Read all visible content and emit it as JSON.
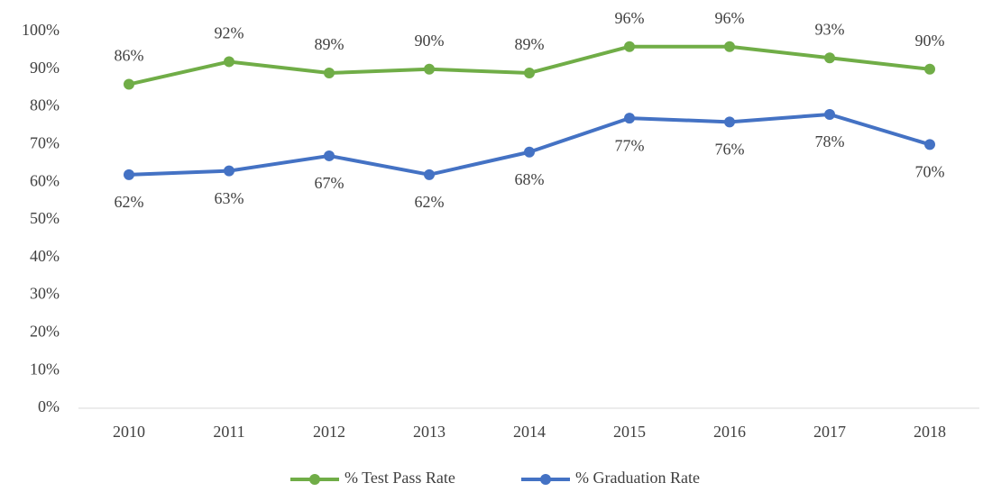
{
  "chart_data": {
    "type": "line",
    "categories": [
      "2010",
      "2011",
      "2012",
      "2013",
      "2014",
      "2015",
      "2016",
      "2017",
      "2018"
    ],
    "series": [
      {
        "name": "% Test Pass Rate",
        "color": "#70ad47",
        "values": [
          86,
          92,
          89,
          90,
          89,
          96,
          96,
          93,
          90
        ],
        "value_labels": [
          "86%",
          "92%",
          "89%",
          "90%",
          "89%",
          "96%",
          "96%",
          "93%",
          "90%"
        ]
      },
      {
        "name": "% Graduation Rate",
        "color": "#4472c4",
        "values": [
          62,
          63,
          67,
          62,
          68,
          77,
          76,
          78,
          70
        ],
        "value_labels": [
          "62%",
          "63%",
          "67%",
          "62%",
          "68%",
          "77%",
          "76%",
          "78%",
          "70%"
        ]
      }
    ],
    "ylim": [
      0,
      100
    ],
    "yticks": [
      {
        "value": 0,
        "label": "0%"
      },
      {
        "value": 10,
        "label": "10%"
      },
      {
        "value": 20,
        "label": "20%"
      },
      {
        "value": 30,
        "label": "30%"
      },
      {
        "value": 40,
        "label": "40%"
      },
      {
        "value": 50,
        "label": "50%"
      },
      {
        "value": 60,
        "label": "60%"
      },
      {
        "value": 70,
        "label": "70%"
      },
      {
        "value": 80,
        "label": "80%"
      },
      {
        "value": 90,
        "label": "90%"
      },
      {
        "value": 100,
        "label": "100%"
      }
    ],
    "grid": false,
    "legend": "bottom"
  }
}
